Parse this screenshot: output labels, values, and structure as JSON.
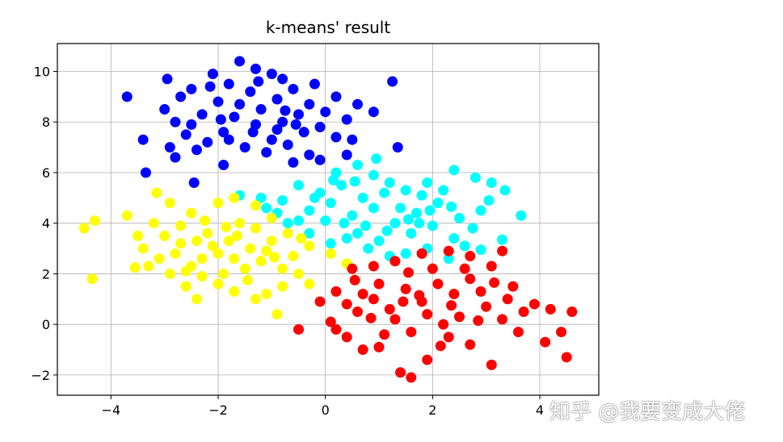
{
  "chart_data": {
    "type": "scatter",
    "title": "k-means' result",
    "xlabel": "",
    "ylabel": "",
    "xlim": [
      -5,
      5.1
    ],
    "ylim": [
      -2.8,
      11.1
    ],
    "xticks": [
      -4,
      -2,
      0,
      2,
      4
    ],
    "yticks": [
      -2,
      0,
      2,
      4,
      6,
      8,
      10
    ],
    "xtick_labels": [
      "−4",
      "−2",
      "0",
      "2",
      "4"
    ],
    "ytick_labels": [
      "−2",
      "0",
      "2",
      "4",
      "6",
      "8",
      "10"
    ],
    "grid": true,
    "series": [
      {
        "color": "#0000ff",
        "points": [
          [
            -3.7,
            9.0
          ],
          [
            -3.4,
            7.3
          ],
          [
            -3.35,
            6.0
          ],
          [
            -2.95,
            9.7
          ],
          [
            -2.5,
            9.3
          ],
          [
            -2.1,
            9.9
          ],
          [
            -1.6,
            10.4
          ],
          [
            -1.3,
            10.1
          ],
          [
            -1.0,
            9.9
          ],
          [
            -0.8,
            9.7
          ],
          [
            0.2,
            9.0
          ],
          [
            0.6,
            8.7
          ],
          [
            0.9,
            8.4
          ],
          [
            1.25,
            9.6
          ],
          [
            1.35,
            7.0
          ],
          [
            -2.45,
            5.6
          ],
          [
            -0.3,
            6.7
          ],
          [
            -0.6,
            6.4
          ],
          [
            -1.9,
            6.3
          ],
          [
            -2.8,
            6.6
          ],
          [
            -3.0,
            8.5
          ],
          [
            -2.8,
            8.0
          ],
          [
            -2.6,
            7.5
          ],
          [
            -2.3,
            8.3
          ],
          [
            -2.2,
            7.2
          ],
          [
            -2.0,
            8.8
          ],
          [
            -1.9,
            7.6
          ],
          [
            -1.7,
            8.2
          ],
          [
            -1.5,
            7.0
          ],
          [
            -1.4,
            9.2
          ],
          [
            -1.3,
            7.9
          ],
          [
            -1.2,
            8.5
          ],
          [
            -1.0,
            7.3
          ],
          [
            -0.9,
            8.9
          ],
          [
            -0.8,
            8.0
          ],
          [
            -0.7,
            7.1
          ],
          [
            -0.6,
            9.3
          ],
          [
            -0.5,
            8.3
          ],
          [
            -0.4,
            7.6
          ],
          [
            -0.3,
            8.7
          ],
          [
            -0.2,
            9.5
          ],
          [
            -0.1,
            7.8
          ],
          [
            0.0,
            8.4
          ],
          [
            0.2,
            7.4
          ],
          [
            0.4,
            8.1
          ],
          [
            0.5,
            7.3
          ],
          [
            0.4,
            6.7
          ],
          [
            -2.7,
            9.0
          ],
          [
            -2.4,
            6.9
          ],
          [
            -1.8,
            9.5
          ],
          [
            -1.1,
            6.8
          ],
          [
            -1.6,
            8.7
          ],
          [
            -2.5,
            7.9
          ],
          [
            -0.9,
            7.7
          ],
          [
            -1.8,
            7.3
          ],
          [
            -0.1,
            6.5
          ],
          [
            -1.35,
            7.6
          ],
          [
            -2.9,
            7.0
          ],
          [
            -0.55,
            7.9
          ],
          [
            -2.15,
            9.4
          ],
          [
            -1.25,
            9.6
          ],
          [
            -0.75,
            8.45
          ],
          [
            -1.95,
            8.1
          ]
        ]
      },
      {
        "color": "#00ffff",
        "points": [
          [
            -1.6,
            5.1
          ],
          [
            -1.2,
            5.0
          ],
          [
            -0.8,
            4.9
          ],
          [
            -0.5,
            5.5
          ],
          [
            -0.1,
            5.2
          ],
          [
            0.2,
            6.0
          ],
          [
            0.6,
            6.3
          ],
          [
            0.9,
            5.9
          ],
          [
            1.2,
            5.6
          ],
          [
            1.5,
            5.3
          ],
          [
            1.9,
            5.6
          ],
          [
            2.4,
            6.1
          ],
          [
            2.8,
            5.8
          ],
          [
            3.1,
            5.6
          ],
          [
            3.35,
            5.3
          ],
          [
            3.65,
            4.3
          ],
          [
            3.3,
            3.35
          ],
          [
            2.9,
            2.95
          ],
          [
            2.3,
            2.6
          ],
          [
            1.9,
            3.0
          ],
          [
            1.5,
            2.8
          ],
          [
            1.2,
            2.7
          ],
          [
            0.8,
            3.0
          ],
          [
            0.4,
            3.4
          ],
          [
            0.1,
            3.2
          ],
          [
            -0.3,
            3.6
          ],
          [
            -0.7,
            4.0
          ],
          [
            -0.3,
            4.5
          ],
          [
            0.1,
            4.8
          ],
          [
            0.5,
            4.3
          ],
          [
            0.9,
            4.6
          ],
          [
            1.3,
            4.0
          ],
          [
            1.7,
            4.4
          ],
          [
            2.1,
            4.8
          ],
          [
            2.5,
            4.2
          ],
          [
            2.9,
            4.5
          ],
          [
            0.3,
            5.5
          ],
          [
            0.7,
            5.0
          ],
          [
            1.1,
            5.2
          ],
          [
            1.6,
            3.6
          ],
          [
            2.0,
            3.9
          ],
          [
            2.4,
            3.4
          ],
          [
            0.6,
            3.6
          ],
          [
            1.0,
            3.3
          ],
          [
            1.4,
            4.6
          ],
          [
            1.8,
            5.1
          ],
          [
            2.2,
            5.3
          ],
          [
            -0.9,
            4.4
          ],
          [
            -0.5,
            4.1
          ],
          [
            0.0,
            4.1
          ],
          [
            0.35,
            4.0
          ],
          [
            0.75,
            3.9
          ],
          [
            1.15,
            3.7
          ],
          [
            1.55,
            4.15
          ],
          [
            1.95,
            4.5
          ],
          [
            2.35,
            4.65
          ],
          [
            2.75,
            3.8
          ],
          [
            3.05,
            4.9
          ],
          [
            -0.2,
            5.0
          ],
          [
            0.15,
            5.7
          ],
          [
            0.55,
            5.65
          ],
          [
            0.95,
            6.55
          ],
          [
            1.75,
            4.0
          ],
          [
            2.6,
            3.1
          ],
          [
            -1.1,
            4.6
          ]
        ]
      },
      {
        "color": "#ffff00",
        "points": [
          [
            -4.5,
            3.8
          ],
          [
            -4.3,
            4.1
          ],
          [
            -4.35,
            1.8
          ],
          [
            -3.7,
            4.3
          ],
          [
            -3.5,
            3.5
          ],
          [
            -3.3,
            2.3
          ],
          [
            -3.15,
            5.2
          ],
          [
            -2.9,
            4.8
          ],
          [
            -2.7,
            3.2
          ],
          [
            -2.5,
            2.3
          ],
          [
            -2.4,
            1.0
          ],
          [
            -2.0,
            4.8
          ],
          [
            -1.7,
            5.0
          ],
          [
            -1.3,
            4.7
          ],
          [
            -1.0,
            4.2
          ],
          [
            -0.7,
            3.6
          ],
          [
            -0.3,
            3.1
          ],
          [
            0.1,
            2.8
          ],
          [
            0.4,
            2.4
          ],
          [
            -0.3,
            1.6
          ],
          [
            -0.8,
            1.5
          ],
          [
            -1.1,
            1.2
          ],
          [
            -0.9,
            0.4
          ],
          [
            -1.3,
            1.0
          ],
          [
            -1.7,
            1.3
          ],
          [
            -2.0,
            1.6
          ],
          [
            -2.3,
            1.9
          ],
          [
            -2.6,
            1.5
          ],
          [
            -2.9,
            2.0
          ],
          [
            -3.1,
            2.6
          ],
          [
            -3.4,
            3.0
          ],
          [
            -3.0,
            3.5
          ],
          [
            -2.7,
            3.9
          ],
          [
            -2.5,
            4.4
          ],
          [
            -2.2,
            3.6
          ],
          [
            -2.0,
            2.8
          ],
          [
            -1.8,
            3.3
          ],
          [
            -1.6,
            4.0
          ],
          [
            -1.4,
            3.0
          ],
          [
            -1.2,
            2.5
          ],
          [
            -1.0,
            3.3
          ],
          [
            -0.8,
            2.2
          ],
          [
            -0.6,
            2.7
          ],
          [
            -1.5,
            2.2
          ],
          [
            -1.9,
            2.0
          ],
          [
            -2.3,
            2.6
          ],
          [
            -2.1,
            3.1
          ],
          [
            -1.7,
            2.6
          ],
          [
            -1.3,
            3.8
          ],
          [
            -1.1,
            2.9
          ],
          [
            -0.5,
            2.0
          ],
          [
            -2.8,
            2.8
          ],
          [
            -3.2,
            4.0
          ],
          [
            -2.4,
            3.3
          ],
          [
            -1.45,
            1.75
          ],
          [
            -1.85,
            3.85
          ],
          [
            -2.6,
            2.1
          ],
          [
            -0.95,
            2.65
          ],
          [
            -1.65,
            3.5
          ],
          [
            -2.25,
            4.1
          ],
          [
            -3.55,
            2.25
          ],
          [
            -0.45,
            3.4
          ]
        ]
      },
      {
        "color": "#ff0000",
        "points": [
          [
            -0.5,
            -0.2
          ],
          [
            -0.1,
            0.9
          ],
          [
            0.2,
            1.3
          ],
          [
            0.5,
            2.2
          ],
          [
            0.9,
            2.3
          ],
          [
            1.3,
            2.5
          ],
          [
            1.8,
            2.8
          ],
          [
            2.3,
            2.9
          ],
          [
            2.7,
            2.7
          ],
          [
            3.1,
            2.3
          ],
          [
            3.3,
            2.9
          ],
          [
            3.5,
            1.5
          ],
          [
            3.9,
            0.8
          ],
          [
            4.2,
            0.6
          ],
          [
            4.6,
            0.5
          ],
          [
            4.4,
            -0.3
          ],
          [
            4.5,
            -1.3
          ],
          [
            4.1,
            -0.7
          ],
          [
            3.6,
            -0.3
          ],
          [
            3.1,
            -1.6
          ],
          [
            2.7,
            -0.8
          ],
          [
            2.3,
            -0.5
          ],
          [
            1.9,
            -1.4
          ],
          [
            1.6,
            -2.1
          ],
          [
            1.4,
            -1.9
          ],
          [
            1.0,
            -0.9
          ],
          [
            0.7,
            -1.0
          ],
          [
            0.4,
            -0.5
          ],
          [
            0.1,
            0.1
          ],
          [
            0.2,
            -0.2
          ],
          [
            0.6,
            0.5
          ],
          [
            0.9,
            1.0
          ],
          [
            1.2,
            0.6
          ],
          [
            1.5,
            1.4
          ],
          [
            1.8,
            0.9
          ],
          [
            2.1,
            1.6
          ],
          [
            2.4,
            1.2
          ],
          [
            2.7,
            1.8
          ],
          [
            3.0,
            0.7
          ],
          [
            3.3,
            0.2
          ],
          [
            2.9,
            1.3
          ],
          [
            2.5,
            0.3
          ],
          [
            2.2,
            0.0
          ],
          [
            1.9,
            0.4
          ],
          [
            1.6,
            -0.3
          ],
          [
            1.3,
            0.2
          ],
          [
            1.0,
            1.6
          ],
          [
            0.7,
            1.2
          ],
          [
            0.4,
            0.8
          ],
          [
            1.1,
            -0.4
          ],
          [
            2.0,
            2.2
          ],
          [
            2.6,
            2.2
          ],
          [
            3.4,
            1.0
          ],
          [
            1.75,
            1.15
          ],
          [
            2.35,
            0.75
          ],
          [
            1.45,
            0.9
          ],
          [
            0.85,
            0.25
          ],
          [
            2.85,
            0.15
          ],
          [
            3.15,
            1.65
          ],
          [
            1.55,
            2.05
          ],
          [
            2.15,
            -0.85
          ],
          [
            0.55,
            1.75
          ],
          [
            3.7,
            0.5
          ]
        ]
      }
    ]
  },
  "watermark": "知乎 @我要变成大佬"
}
